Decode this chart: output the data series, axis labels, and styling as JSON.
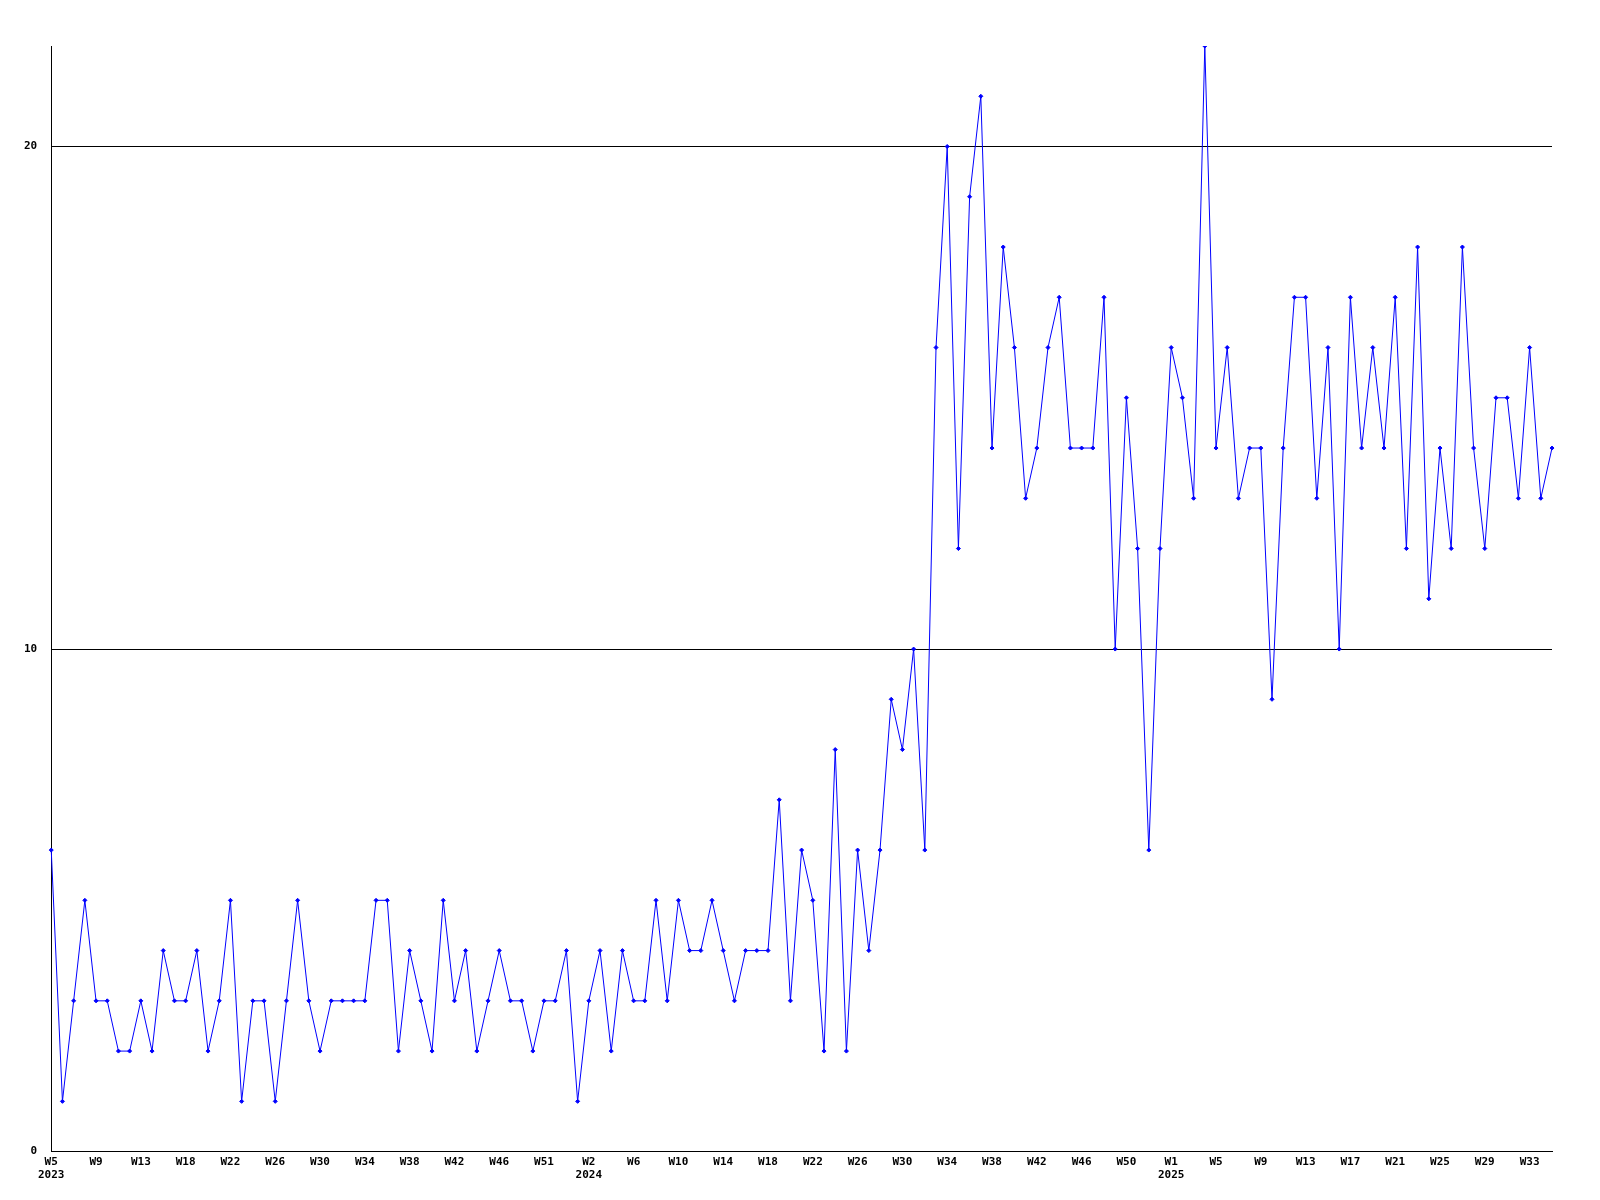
{
  "chart_data": {
    "type": "line",
    "categories": [
      "W5\n2023",
      null,
      null,
      null,
      "W9",
      null,
      null,
      null,
      "W13",
      null,
      null,
      null,
      "W18",
      null,
      null,
      null,
      "W22",
      null,
      null,
      null,
      "W26",
      null,
      null,
      null,
      "W30",
      null,
      null,
      null,
      "W34",
      null,
      null,
      null,
      "W38",
      null,
      null,
      null,
      "W42",
      null,
      null,
      null,
      "W46",
      null,
      null,
      null,
      "W51",
      null,
      null,
      null,
      "W2\n2024",
      null,
      null,
      null,
      "W6",
      null,
      null,
      null,
      "W10",
      null,
      null,
      null,
      "W14",
      null,
      null,
      null,
      "W18",
      null,
      null,
      null,
      "W22",
      null,
      null,
      null,
      "W26",
      null,
      null,
      null,
      "W30",
      null,
      null,
      null,
      "W34",
      null,
      null,
      null,
      "W38",
      null,
      null,
      null,
      "W42",
      null,
      null,
      null,
      "W46",
      null,
      null,
      null,
      "W50",
      null,
      null,
      null,
      "W1\n2025",
      null,
      null,
      null,
      "W5",
      null,
      null,
      null,
      "W9",
      null,
      null,
      null,
      "W13",
      null,
      null,
      null,
      "W17",
      null,
      null,
      null,
      "W21",
      null,
      null,
      null,
      "W25",
      null,
      null,
      null,
      "W29",
      null,
      null,
      null,
      "W33",
      null,
      null
    ],
    "series": [
      {
        "color": "#0000ff",
        "values": [
          6,
          1,
          3,
          5,
          3,
          3,
          2,
          2,
          3,
          2,
          4,
          3,
          3,
          4,
          2,
          3,
          5,
          1,
          3,
          3,
          1,
          3,
          5,
          3,
          2,
          3,
          3,
          3,
          3,
          5,
          5,
          2,
          4,
          3,
          2,
          5,
          3,
          4,
          2,
          3,
          4,
          3,
          3,
          2,
          3,
          3,
          4,
          1,
          3,
          4,
          2,
          4,
          3,
          3,
          5,
          3,
          5,
          4,
          4,
          5,
          4,
          3,
          4,
          4,
          4,
          7,
          3,
          6,
          5,
          2,
          8,
          2,
          6,
          4,
          6,
          9,
          8,
          10,
          6,
          16,
          20,
          12,
          19,
          21,
          14,
          18,
          16,
          13,
          14,
          16,
          17,
          14,
          14,
          14,
          17,
          10,
          15,
          12,
          6,
          12,
          16,
          15,
          13,
          22,
          14,
          16,
          13,
          14,
          14,
          9,
          14,
          17,
          17,
          13,
          16,
          10,
          17,
          14,
          16,
          14,
          17,
          12,
          18,
          11,
          14,
          12,
          18,
          14,
          12,
          15,
          15,
          13,
          16,
          13,
          14
        ]
      }
    ],
    "ylim": [
      0,
      22
    ],
    "yticks": [
      0,
      10,
      20
    ],
    "grid": "y",
    "marker": "diamond",
    "line_style": "solid",
    "legend": false
  }
}
